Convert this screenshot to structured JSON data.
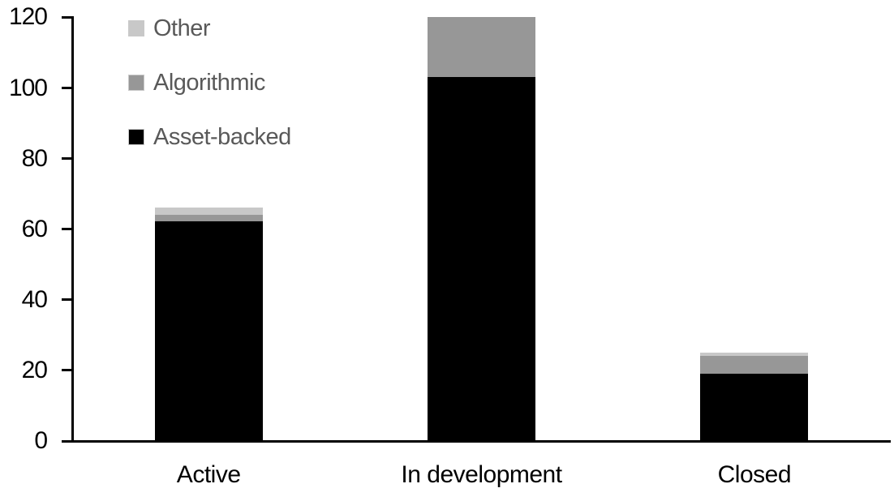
{
  "figure": {
    "background_color": "#ffffff",
    "axis_color": "#000000",
    "tick_label_color": "#000000",
    "category_label_color": "#000000"
  },
  "legend": {
    "text_color": "#595959",
    "items": [
      {
        "label": "Other",
        "color": "#C8C8C8"
      },
      {
        "label": "Algorithmic",
        "color": "#979797"
      },
      {
        "label": "Asset-backed",
        "color": "#000000"
      }
    ]
  },
  "chart_data": {
    "type": "bar",
    "stacked": true,
    "title": "",
    "xlabel": "",
    "ylabel": "",
    "categories": [
      "Active",
      "In development",
      "Closed"
    ],
    "series": [
      {
        "name": "Asset-backed",
        "color": "#000000",
        "values": [
          62,
          103,
          19
        ]
      },
      {
        "name": "Algorithmic",
        "color": "#979797",
        "values": [
          2,
          17,
          5
        ]
      },
      {
        "name": "Other",
        "color": "#C8C8C8",
        "values": [
          2,
          0,
          1
        ]
      }
    ],
    "stack_order_bottom_to_top": [
      "Asset-backed",
      "Algorithmic",
      "Other"
    ],
    "totals": [
      66,
      120,
      25
    ],
    "ylim": [
      0,
      120
    ],
    "yticks": [
      0,
      20,
      40,
      60,
      80,
      100,
      120
    ],
    "grid": false,
    "legend_position": "upper-left"
  }
}
